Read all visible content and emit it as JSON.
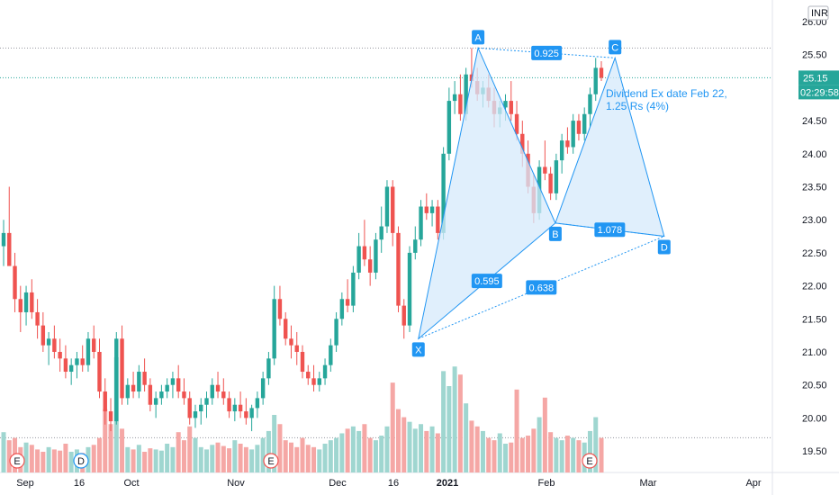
{
  "chart_data": {
    "type": "candlestick",
    "currency": "INR",
    "last_price": "25.15",
    "countdown": "02:29:58",
    "y_ticks": [
      "26.00",
      "25.50",
      "25.00",
      "24.50",
      "24.00",
      "23.50",
      "23.00",
      "22.50",
      "22.00",
      "21.50",
      "21.00",
      "20.50",
      "20.00",
      "19.50"
    ],
    "ylim": [
      19.5,
      26.0
    ],
    "x_ticks": [
      "Sep",
      "16",
      "Oct",
      "Nov",
      "Dec",
      "16",
      "2021",
      "Feb",
      "Mar",
      "Apr"
    ],
    "harmonic_pattern": {
      "points": [
        {
          "label": "X",
          "date": "2020-12-21",
          "price": 21.2
        },
        {
          "label": "A",
          "date": "2021-01-07",
          "price": 25.6
        },
        {
          "label": "B",
          "date": "2021-01-29",
          "price": 22.95
        },
        {
          "label": "C",
          "date": "2021-02-15",
          "price": 25.45
        },
        {
          "label": "D",
          "date": "2021-03-01",
          "price": 22.75
        }
      ],
      "ratios": [
        "0.925",
        "0.595",
        "0.638",
        "1.078"
      ]
    },
    "annotation": [
      "Dividend Ex date Feb 22,",
      "1.25 Rs (4%)"
    ],
    "event_markers": [
      "E",
      "D",
      "E",
      "E"
    ],
    "colors": {
      "up": "#26a69a",
      "down": "#ef5350",
      "pattern": "#2196f3",
      "pattern_fill": "#d6e9fb"
    },
    "candles_ohlc": [
      [
        22.6,
        23.0,
        22.3,
        22.8
      ],
      [
        22.8,
        23.5,
        22.6,
        22.3
      ],
      [
        22.3,
        22.5,
        21.6,
        21.8
      ],
      [
        21.8,
        22.0,
        21.3,
        21.6
      ],
      [
        21.6,
        22.0,
        21.4,
        21.9
      ],
      [
        21.9,
        22.1,
        21.5,
        21.6
      ],
      [
        21.6,
        21.8,
        21.2,
        21.4
      ],
      [
        21.4,
        21.6,
        21.0,
        21.1
      ],
      [
        21.1,
        21.3,
        20.8,
        21.2
      ],
      [
        21.2,
        21.4,
        20.9,
        21.0
      ],
      [
        21.0,
        21.2,
        20.7,
        20.9
      ],
      [
        20.9,
        21.1,
        20.6,
        20.7
      ],
      [
        20.7,
        20.9,
        20.5,
        20.8
      ],
      [
        20.8,
        21.0,
        20.6,
        20.9
      ],
      [
        20.9,
        21.1,
        20.7,
        20.8
      ],
      [
        20.8,
        21.3,
        20.7,
        21.2
      ],
      [
        21.2,
        21.4,
        20.9,
        21.0
      ],
      [
        21.0,
        21.2,
        20.3,
        20.4
      ],
      [
        20.4,
        20.6,
        19.9,
        20.1
      ],
      [
        20.1,
        20.3,
        19.8,
        19.95
      ],
      [
        19.95,
        21.3,
        19.9,
        21.2
      ],
      [
        21.2,
        21.4,
        20.2,
        20.3
      ],
      [
        20.3,
        20.6,
        20.2,
        20.5
      ],
      [
        20.5,
        20.7,
        20.3,
        20.4
      ],
      [
        20.4,
        20.8,
        20.3,
        20.7
      ],
      [
        20.7,
        20.9,
        20.4,
        20.5
      ],
      [
        20.5,
        20.6,
        20.1,
        20.2
      ],
      [
        20.2,
        20.4,
        20.0,
        20.3
      ],
      [
        20.3,
        20.5,
        20.2,
        20.4
      ],
      [
        20.4,
        20.6,
        20.3,
        20.5
      ],
      [
        20.5,
        20.7,
        20.3,
        20.6
      ],
      [
        20.6,
        20.8,
        20.3,
        20.4
      ],
      [
        20.4,
        20.6,
        20.2,
        20.3
      ],
      [
        20.3,
        20.4,
        19.9,
        20.0
      ],
      [
        20.0,
        20.2,
        19.85,
        20.1
      ],
      [
        20.1,
        20.3,
        19.9,
        20.2
      ],
      [
        20.2,
        20.4,
        20.0,
        20.3
      ],
      [
        20.3,
        20.6,
        20.2,
        20.5
      ],
      [
        20.5,
        20.7,
        20.3,
        20.4
      ],
      [
        20.4,
        20.6,
        20.2,
        20.3
      ],
      [
        20.3,
        20.4,
        20.0,
        20.1
      ],
      [
        20.1,
        20.3,
        19.95,
        20.2
      ],
      [
        20.2,
        20.4,
        20.0,
        20.1
      ],
      [
        20.1,
        20.3,
        19.9,
        20.0
      ],
      [
        20.0,
        20.2,
        19.8,
        20.15
      ],
      [
        20.15,
        20.4,
        20.0,
        20.3
      ],
      [
        20.3,
        20.7,
        20.2,
        20.6
      ],
      [
        20.6,
        21.0,
        20.5,
        20.9
      ],
      [
        20.9,
        22.0,
        20.8,
        21.8
      ],
      [
        21.8,
        22.0,
        21.4,
        21.5
      ],
      [
        21.5,
        21.6,
        21.1,
        21.2
      ],
      [
        21.2,
        21.4,
        20.9,
        21.1
      ],
      [
        21.1,
        21.3,
        20.8,
        21.0
      ],
      [
        21.0,
        21.1,
        20.6,
        20.7
      ],
      [
        20.7,
        20.8,
        20.5,
        20.6
      ],
      [
        20.6,
        20.8,
        20.4,
        20.5
      ],
      [
        20.5,
        20.7,
        20.4,
        20.6
      ],
      [
        20.6,
        20.9,
        20.5,
        20.8
      ],
      [
        20.8,
        21.2,
        20.7,
        21.1
      ],
      [
        21.1,
        21.6,
        21.0,
        21.5
      ],
      [
        21.5,
        21.9,
        21.4,
        21.8
      ],
      [
        21.8,
        22.1,
        21.6,
        21.7
      ],
      [
        21.7,
        22.3,
        21.6,
        22.2
      ],
      [
        22.2,
        22.8,
        22.1,
        22.6
      ],
      [
        22.6,
        23.0,
        22.3,
        22.4
      ],
      [
        22.4,
        22.6,
        22.0,
        22.2
      ],
      [
        22.2,
        22.8,
        22.1,
        22.7
      ],
      [
        22.7,
        23.2,
        22.5,
        22.9
      ],
      [
        22.9,
        23.6,
        22.8,
        23.5
      ],
      [
        23.5,
        23.6,
        22.6,
        22.8
      ],
      [
        22.8,
        22.9,
        21.6,
        21.7
      ],
      [
        21.7,
        21.8,
        21.2,
        21.4
      ],
      [
        21.4,
        22.6,
        21.3,
        22.5
      ],
      [
        22.5,
        22.9,
        22.4,
        22.7
      ],
      [
        22.7,
        23.3,
        22.6,
        23.2
      ],
      [
        23.2,
        23.4,
        23.0,
        23.1
      ],
      [
        23.1,
        23.3,
        22.9,
        23.2
      ],
      [
        23.2,
        23.3,
        22.7,
        22.8
      ],
      [
        22.8,
        24.1,
        22.7,
        24.0
      ],
      [
        24.0,
        25.0,
        23.9,
        24.8
      ],
      [
        24.8,
        25.1,
        24.6,
        24.9
      ],
      [
        24.9,
        25.2,
        24.5,
        24.6
      ],
      [
        24.6,
        25.3,
        24.5,
        25.2
      ],
      [
        25.2,
        25.6,
        25.0,
        25.1
      ],
      [
        25.1,
        25.3,
        24.8,
        24.9
      ],
      [
        24.9,
        25.1,
        24.7,
        25.0
      ],
      [
        25.0,
        25.2,
        24.7,
        24.8
      ],
      [
        24.8,
        25.0,
        24.4,
        24.6
      ],
      [
        24.6,
        24.8,
        24.4,
        24.7
      ],
      [
        24.7,
        24.9,
        24.5,
        24.8
      ],
      [
        24.8,
        25.1,
        24.5,
        24.6
      ],
      [
        24.6,
        24.8,
        24.2,
        24.3
      ],
      [
        24.3,
        24.5,
        23.8,
        24.0
      ],
      [
        24.0,
        24.2,
        23.4,
        23.5
      ],
      [
        23.5,
        23.7,
        22.95,
        23.1
      ],
      [
        23.1,
        23.9,
        23.0,
        23.8
      ],
      [
        23.8,
        24.2,
        23.6,
        23.7
      ],
      [
        23.7,
        23.8,
        23.3,
        23.4
      ],
      [
        23.4,
        24.0,
        23.3,
        23.9
      ],
      [
        23.9,
        24.3,
        23.7,
        24.2
      ],
      [
        24.2,
        24.4,
        24.0,
        24.1
      ],
      [
        24.1,
        24.6,
        24.0,
        24.5
      ],
      [
        24.5,
        24.6,
        24.2,
        24.3
      ],
      [
        24.3,
        24.7,
        24.2,
        24.6
      ],
      [
        24.6,
        25.0,
        24.4,
        24.9
      ],
      [
        24.9,
        25.45,
        24.8,
        25.3
      ],
      [
        25.3,
        25.4,
        25.1,
        25.15
      ]
    ],
    "volume": [
      0.35,
      0.28,
      0.3,
      0.22,
      0.26,
      0.24,
      0.2,
      0.18,
      0.22,
      0.2,
      0.19,
      0.25,
      0.18,
      0.2,
      0.17,
      0.22,
      0.24,
      0.3,
      0.55,
      0.42,
      1.0,
      0.38,
      0.22,
      0.2,
      0.24,
      0.18,
      0.21,
      0.2,
      0.19,
      0.25,
      0.22,
      0.35,
      0.28,
      0.4,
      0.3,
      0.22,
      0.2,
      0.24,
      0.26,
      0.23,
      0.21,
      0.28,
      0.25,
      0.22,
      0.2,
      0.24,
      0.3,
      0.36,
      0.5,
      0.42,
      0.28,
      0.26,
      0.22,
      0.3,
      0.24,
      0.22,
      0.2,
      0.25,
      0.28,
      0.3,
      0.34,
      0.38,
      0.4,
      0.36,
      0.42,
      0.3,
      0.28,
      0.32,
      0.4,
      0.78,
      0.55,
      0.48,
      0.44,
      0.38,
      0.42,
      0.36,
      0.4,
      0.34,
      0.88,
      0.75,
      0.92,
      0.85,
      0.6,
      0.45,
      0.4,
      0.36,
      0.3,
      0.28,
      0.34,
      0.25,
      0.26,
      0.72,
      0.3,
      0.32,
      0.38,
      0.48,
      0.65,
      0.35,
      0.3,
      0.28,
      0.32,
      0.3,
      0.28,
      0.26,
      0.36,
      0.48,
      0.3
    ]
  }
}
